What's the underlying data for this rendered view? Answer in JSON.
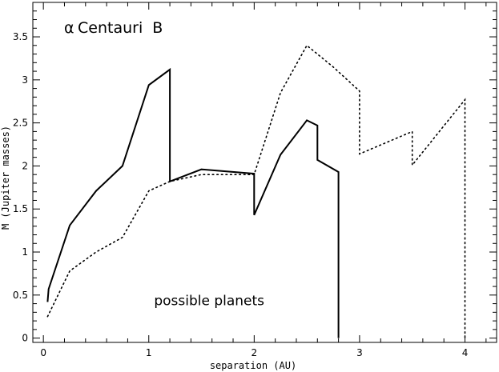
{
  "chart_data": {
    "type": "line",
    "title_symbol": "α",
    "title": "Centauri  B",
    "xlabel": "separation (AU)",
    "ylabel": "M (Jupiter masses)",
    "xlim": [
      -0.1,
      4.3
    ],
    "ylim": [
      -0.05,
      3.9
    ],
    "xticks": [
      0,
      1,
      2,
      3,
      4
    ],
    "xtick_labels": [
      "0",
      "1",
      "2",
      "3",
      "4"
    ],
    "yticks": [
      0,
      0.5,
      1,
      1.5,
      2,
      2.5,
      3,
      3.5
    ],
    "ytick_labels": [
      "0",
      "0.5",
      "1",
      "1.5",
      "2",
      "2.5",
      "3",
      "3.5"
    ],
    "annotations": [
      {
        "text": "possible planets",
        "x": 1.05,
        "y": 0.38
      }
    ],
    "series": [
      {
        "style": "solid",
        "x": [
          0.04,
          0.05,
          0.25,
          0.5,
          0.75,
          1.0,
          1.2,
          1.2,
          1.5,
          2.0,
          2.0,
          2.25,
          2.5,
          2.6,
          2.6,
          2.8,
          2.8
        ],
        "y": [
          0.42,
          0.57,
          1.31,
          1.71,
          2.0,
          2.94,
          3.12,
          1.82,
          1.96,
          1.91,
          1.43,
          2.13,
          2.53,
          2.47,
          2.07,
          1.93,
          0.0
        ]
      },
      {
        "style": "dotted",
        "x": [
          0.04,
          0.25,
          0.5,
          0.75,
          1.0,
          1.2,
          1.5,
          2.0,
          2.25,
          2.5,
          2.75,
          3.0,
          3.0,
          3.5,
          3.5,
          4.0,
          4.0
        ],
        "y": [
          0.25,
          0.78,
          1.0,
          1.17,
          1.71,
          1.82,
          1.9,
          1.9,
          2.85,
          3.4,
          3.15,
          2.87,
          2.14,
          2.4,
          2.01,
          2.77,
          0.0
        ]
      }
    ]
  }
}
